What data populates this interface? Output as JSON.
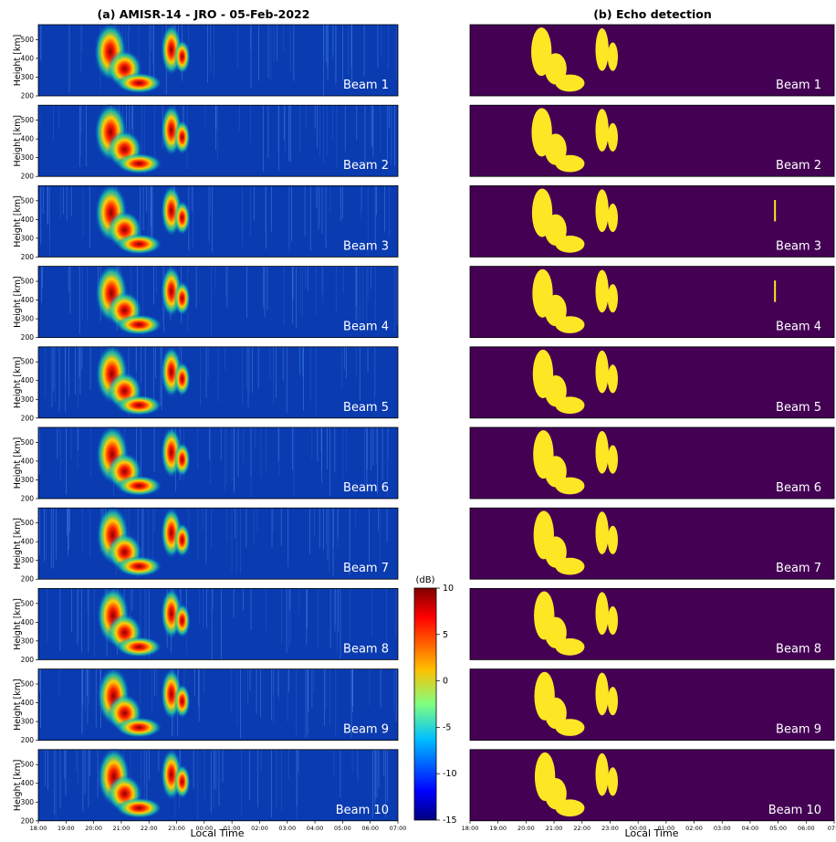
{
  "chart_data": [
    {
      "type": "heatmap",
      "title": "(a) AMISR-14 - JRO - 05-Feb-2022",
      "xlabel": "Local Time",
      "ylabel": "Height [km]",
      "x_ticks": [
        "18:00",
        "19:00",
        "20:00",
        "21:00",
        "22:00",
        "23:00",
        "00:00",
        "01:00",
        "02:00",
        "03:00",
        "04:00",
        "05:00",
        "06:00",
        "07:00"
      ],
      "y_ticks": [
        200,
        300,
        400,
        500
      ],
      "ylim": [
        200,
        580
      ],
      "panels": [
        {
          "label": "Beam 1"
        },
        {
          "label": "Beam 2"
        },
        {
          "label": "Beam 3"
        },
        {
          "label": "Beam 4"
        },
        {
          "label": "Beam 5"
        },
        {
          "label": "Beam 6"
        },
        {
          "label": "Beam 7"
        },
        {
          "label": "Beam 8"
        },
        {
          "label": "Beam 9"
        },
        {
          "label": "Beam 10"
        }
      ],
      "colorbar": {
        "label": "(dB)",
        "ticks": [
          10,
          5,
          0,
          -5,
          -10,
          -15
        ],
        "range": [
          -15,
          10
        ],
        "colormap": "jet"
      }
    },
    {
      "type": "heatmap",
      "title": "(b) Echo detection",
      "xlabel": "Local Time",
      "x_ticks": [
        "18:00",
        "19:00",
        "20:00",
        "21:00",
        "22:00",
        "23:00",
        "00:00",
        "01:00",
        "02:00",
        "03:00",
        "04:00",
        "05:00",
        "06:00",
        "07:0"
      ],
      "colors": {
        "background": "#440154",
        "echo": "#fde725"
      },
      "panels": [
        {
          "label": "Beam 1"
        },
        {
          "label": "Beam 2"
        },
        {
          "label": "Beam 3"
        },
        {
          "label": "Beam 4"
        },
        {
          "label": "Beam 5"
        },
        {
          "label": "Beam 6"
        },
        {
          "label": "Beam 7"
        },
        {
          "label": "Beam 8"
        },
        {
          "label": "Beam 9"
        },
        {
          "label": "Beam 10"
        }
      ]
    }
  ]
}
